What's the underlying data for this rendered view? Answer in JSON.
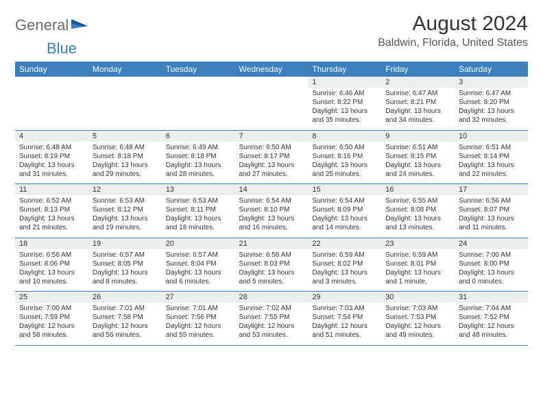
{
  "logo": {
    "part1": "General",
    "part2": "Blue"
  },
  "title": "August 2024",
  "location": "Baldwin, Florida, United States",
  "colors": {
    "header_bg": "#3b7fbf",
    "header_text": "#ffffff",
    "daynum_bg": "#eceded",
    "text": "#333333",
    "border": "#3b7fbf",
    "logo_gray": "#6b6b6b",
    "logo_blue": "#3b7fbf"
  },
  "weekdays": [
    "Sunday",
    "Monday",
    "Tuesday",
    "Wednesday",
    "Thursday",
    "Friday",
    "Saturday"
  ],
  "weeks": [
    [
      null,
      null,
      null,
      null,
      {
        "n": "1",
        "sr": "6:46 AM",
        "ss": "8:22 PM",
        "dl": "13 hours and 35 minutes."
      },
      {
        "n": "2",
        "sr": "6:47 AM",
        "ss": "8:21 PM",
        "dl": "13 hours and 34 minutes."
      },
      {
        "n": "3",
        "sr": "6:47 AM",
        "ss": "8:20 PM",
        "dl": "13 hours and 32 minutes."
      }
    ],
    [
      {
        "n": "4",
        "sr": "6:48 AM",
        "ss": "8:19 PM",
        "dl": "13 hours and 31 minutes."
      },
      {
        "n": "5",
        "sr": "6:48 AM",
        "ss": "8:18 PM",
        "dl": "13 hours and 29 minutes."
      },
      {
        "n": "6",
        "sr": "6:49 AM",
        "ss": "8:18 PM",
        "dl": "13 hours and 28 minutes."
      },
      {
        "n": "7",
        "sr": "6:50 AM",
        "ss": "8:17 PM",
        "dl": "13 hours and 27 minutes."
      },
      {
        "n": "8",
        "sr": "6:50 AM",
        "ss": "8:16 PM",
        "dl": "13 hours and 25 minutes."
      },
      {
        "n": "9",
        "sr": "6:51 AM",
        "ss": "8:15 PM",
        "dl": "13 hours and 24 minutes."
      },
      {
        "n": "10",
        "sr": "6:51 AM",
        "ss": "8:14 PM",
        "dl": "13 hours and 22 minutes."
      }
    ],
    [
      {
        "n": "11",
        "sr": "6:52 AM",
        "ss": "8:13 PM",
        "dl": "13 hours and 21 minutes."
      },
      {
        "n": "12",
        "sr": "6:53 AM",
        "ss": "8:12 PM",
        "dl": "13 hours and 19 minutes."
      },
      {
        "n": "13",
        "sr": "6:53 AM",
        "ss": "8:11 PM",
        "dl": "13 hours and 18 minutes."
      },
      {
        "n": "14",
        "sr": "6:54 AM",
        "ss": "8:10 PM",
        "dl": "13 hours and 16 minutes."
      },
      {
        "n": "15",
        "sr": "6:54 AM",
        "ss": "8:09 PM",
        "dl": "13 hours and 14 minutes."
      },
      {
        "n": "16",
        "sr": "6:55 AM",
        "ss": "8:08 PM",
        "dl": "13 hours and 13 minutes."
      },
      {
        "n": "17",
        "sr": "6:56 AM",
        "ss": "8:07 PM",
        "dl": "13 hours and 11 minutes."
      }
    ],
    [
      {
        "n": "18",
        "sr": "6:56 AM",
        "ss": "8:06 PM",
        "dl": "13 hours and 10 minutes."
      },
      {
        "n": "19",
        "sr": "6:57 AM",
        "ss": "8:05 PM",
        "dl": "13 hours and 8 minutes."
      },
      {
        "n": "20",
        "sr": "6:57 AM",
        "ss": "8:04 PM",
        "dl": "13 hours and 6 minutes."
      },
      {
        "n": "21",
        "sr": "6:58 AM",
        "ss": "8:03 PM",
        "dl": "13 hours and 5 minutes."
      },
      {
        "n": "22",
        "sr": "6:59 AM",
        "ss": "8:02 PM",
        "dl": "13 hours and 3 minutes."
      },
      {
        "n": "23",
        "sr": "6:59 AM",
        "ss": "8:01 PM",
        "dl": "13 hours and 1 minute."
      },
      {
        "n": "24",
        "sr": "7:00 AM",
        "ss": "8:00 PM",
        "dl": "13 hours and 0 minutes."
      }
    ],
    [
      {
        "n": "25",
        "sr": "7:00 AM",
        "ss": "7:59 PM",
        "dl": "12 hours and 58 minutes."
      },
      {
        "n": "26",
        "sr": "7:01 AM",
        "ss": "7:58 PM",
        "dl": "12 hours and 56 minutes."
      },
      {
        "n": "27",
        "sr": "7:01 AM",
        "ss": "7:56 PM",
        "dl": "12 hours and 55 minutes."
      },
      {
        "n": "28",
        "sr": "7:02 AM",
        "ss": "7:55 PM",
        "dl": "12 hours and 53 minutes."
      },
      {
        "n": "29",
        "sr": "7:03 AM",
        "ss": "7:54 PM",
        "dl": "12 hours and 51 minutes."
      },
      {
        "n": "30",
        "sr": "7:03 AM",
        "ss": "7:53 PM",
        "dl": "12 hours and 49 minutes."
      },
      {
        "n": "31",
        "sr": "7:04 AM",
        "ss": "7:52 PM",
        "dl": "12 hours and 48 minutes."
      }
    ]
  ],
  "labels": {
    "sunrise": "Sunrise:",
    "sunset": "Sunset:",
    "daylight": "Daylight:"
  }
}
